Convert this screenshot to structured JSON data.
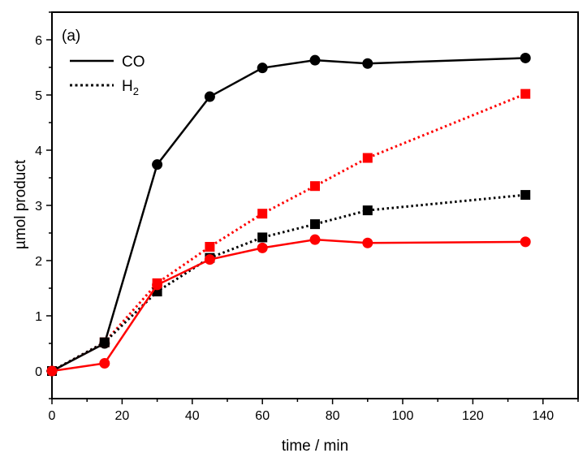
{
  "chart_data": {
    "type": "line",
    "panel_label": "(a)",
    "xlabel": "time / min",
    "ylabel": "µmol product",
    "xlim": [
      0,
      150
    ],
    "ylim": [
      -0.5,
      6.5
    ],
    "xticks": [
      0,
      20,
      40,
      60,
      80,
      100,
      120,
      140
    ],
    "xtick_labels": [
      "0",
      "20",
      "40",
      "60",
      "80",
      "100",
      "120",
      "140"
    ],
    "yticks": [
      0,
      1,
      2,
      3,
      4,
      5,
      6
    ],
    "ytick_labels": [
      "0",
      "1",
      "2",
      "3",
      "4",
      "5",
      "6"
    ],
    "grid": false,
    "legend": {
      "placement": "top-left",
      "entries": [
        {
          "label": "CO",
          "sub": "",
          "style": "solid"
        },
        {
          "label": "H",
          "sub": "2",
          "style": "dotted"
        }
      ]
    },
    "x": [
      0,
      15,
      30,
      45,
      60,
      75,
      90,
      135
    ],
    "series": [
      {
        "name": "CO (black)",
        "gas": "CO",
        "color": "#000000",
        "style": "solid",
        "marker": "circle",
        "values": [
          0,
          0.5,
          3.74,
          4.97,
          5.49,
          5.63,
          5.57,
          5.67
        ]
      },
      {
        "name": "H2 (red)",
        "gas": "H2",
        "color": "#ff0000",
        "style": "dotted",
        "marker": "square",
        "values": [
          0,
          0.52,
          1.59,
          2.25,
          2.85,
          3.35,
          3.86,
          5.02
        ]
      },
      {
        "name": "H2 (black)",
        "gas": "H2",
        "color": "#000000",
        "style": "dotted",
        "marker": "square",
        "values": [
          0,
          0.52,
          1.44,
          2.05,
          2.42,
          2.66,
          2.91,
          3.19
        ]
      },
      {
        "name": "CO (red)",
        "gas": "CO",
        "color": "#ff0000",
        "style": "solid",
        "marker": "circle",
        "values": [
          0,
          0.14,
          1.56,
          2.02,
          2.23,
          2.38,
          2.32,
          2.34
        ]
      }
    ]
  }
}
